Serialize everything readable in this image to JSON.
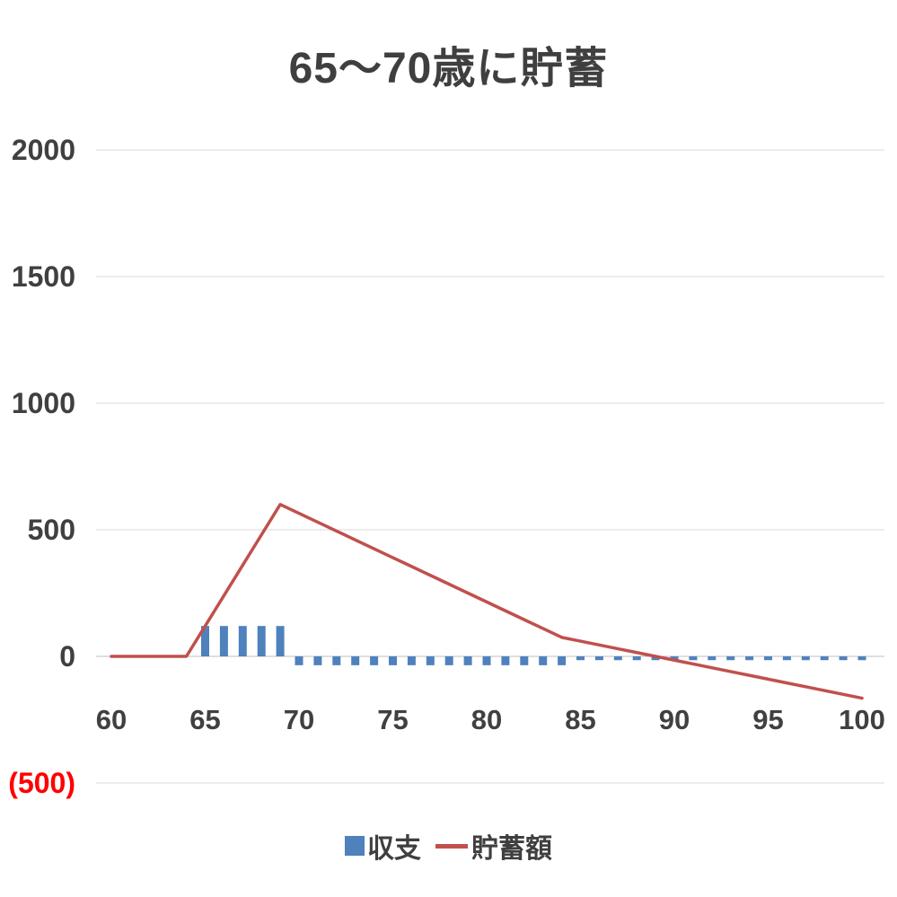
{
  "title": "65〜70歳に貯蓄",
  "chart_data": {
    "type": "bar",
    "title": "65〜70歳に貯蓄",
    "x": [
      60,
      61,
      62,
      63,
      64,
      65,
      66,
      67,
      68,
      69,
      70,
      71,
      72,
      73,
      74,
      75,
      76,
      77,
      78,
      79,
      80,
      81,
      82,
      83,
      84,
      85,
      86,
      87,
      88,
      89,
      90,
      91,
      92,
      93,
      94,
      95,
      96,
      97,
      98,
      99,
      100
    ],
    "xticks": [
      60,
      65,
      70,
      75,
      80,
      85,
      90,
      95,
      100
    ],
    "yticks": [
      2000,
      1500,
      1000,
      500,
      0,
      -500
    ],
    "ytick_labels": [
      "2000",
      "1500",
      "1000",
      "500",
      "0",
      "(500)"
    ],
    "ylim": [
      -500,
      2000
    ],
    "xlabel": "",
    "ylabel": "",
    "grid": true,
    "legend_position": "bottom",
    "colors": {
      "axis_text": "#404040",
      "grid": "#d9d9d9",
      "zero_line": "#bfbfbf",
      "negative_label": "#ff0000"
    },
    "series": [
      {
        "name": "収支",
        "kind": "bar",
        "color": "#4f81bd",
        "values": [
          0,
          0,
          0,
          0,
          0,
          120,
          120,
          120,
          120,
          120,
          -35,
          -35,
          -35,
          -35,
          -35,
          -35,
          -35,
          -35,
          -35,
          -35,
          -35,
          -35,
          -35,
          -35,
          -35,
          -15,
          -15,
          -15,
          -15,
          -15,
          -15,
          -15,
          -15,
          -15,
          -15,
          -15,
          -15,
          -15,
          -15,
          -15,
          -15
        ]
      },
      {
        "name": "貯蓄額",
        "kind": "line",
        "color": "#c0504d",
        "values": [
          0,
          0,
          0,
          0,
          0,
          120,
          240,
          360,
          480,
          600,
          565,
          530,
          495,
          460,
          425,
          390,
          355,
          320,
          285,
          250,
          215,
          180,
          145,
          110,
          75,
          60,
          45,
          30,
          15,
          0,
          -15,
          -30,
          -45,
          -60,
          -75,
          -90,
          -105,
          -120,
          -135,
          -150,
          -165
        ]
      }
    ]
  }
}
